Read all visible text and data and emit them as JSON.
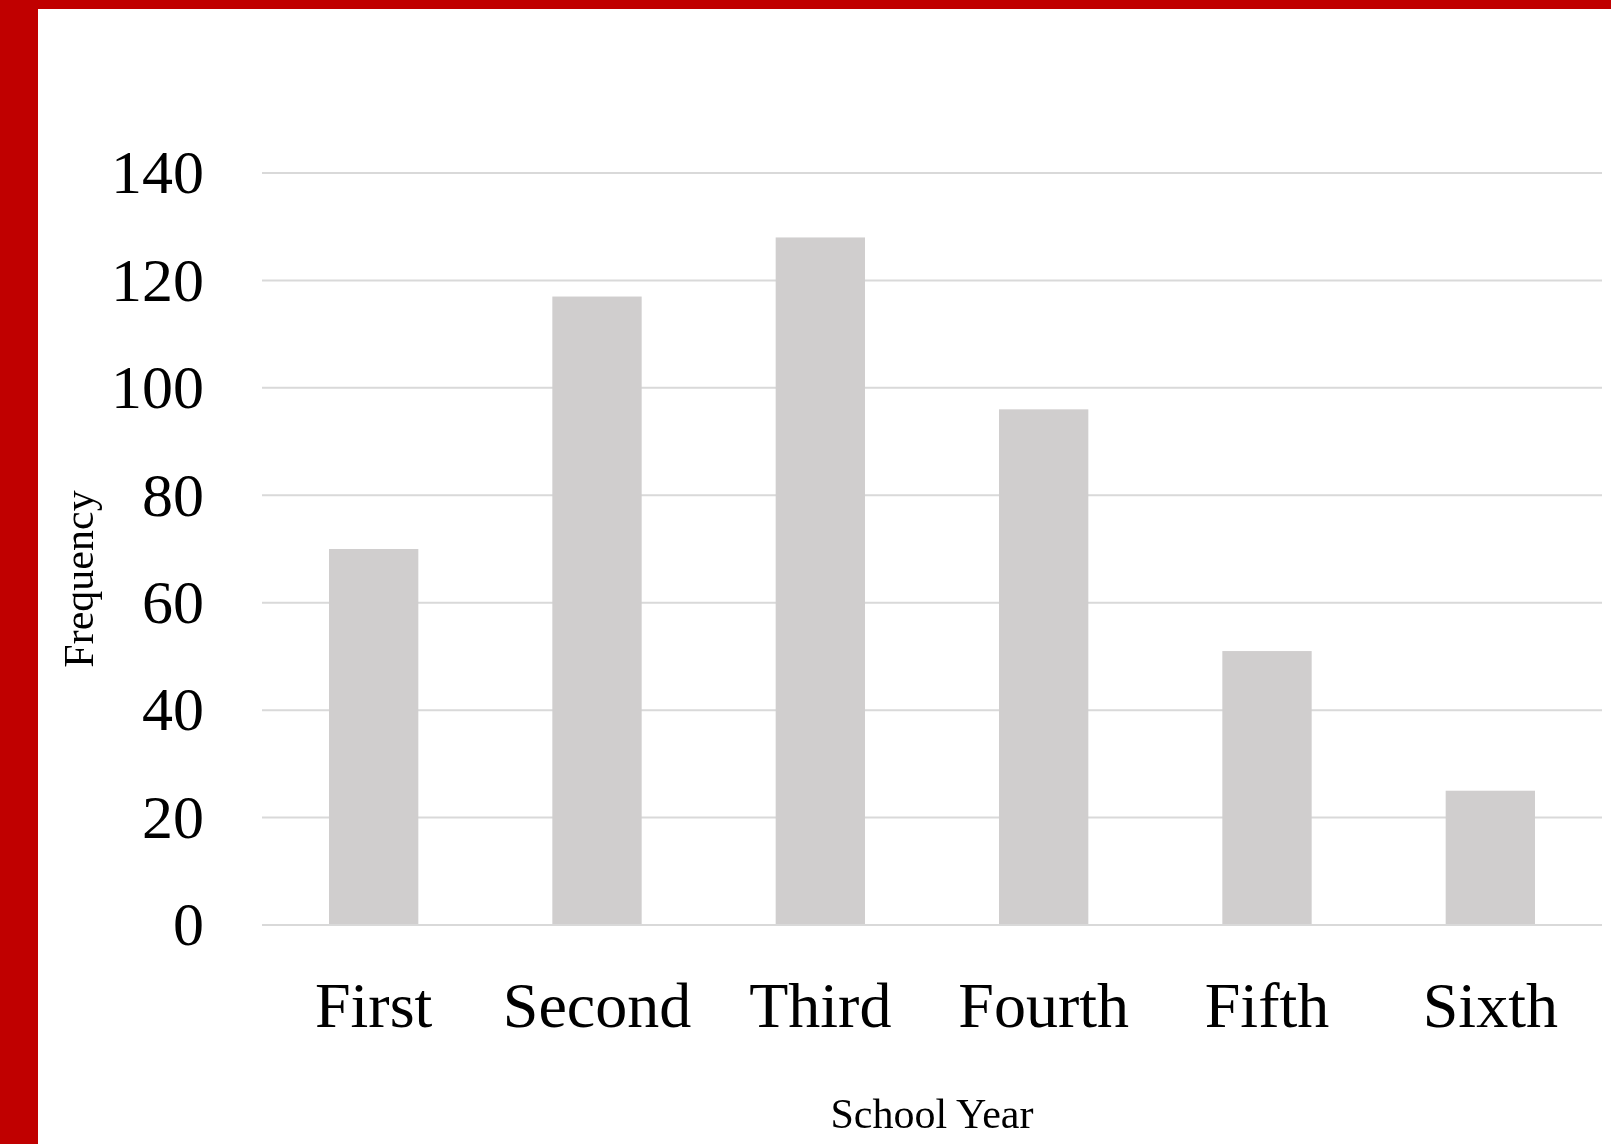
{
  "chart_data": {
    "type": "bar",
    "xlabel": "School Year",
    "ylabel": "Frequency",
    "categories": [
      "First",
      "Second",
      "Third",
      "Fourth",
      "Fifth",
      "Sixth"
    ],
    "values": [
      70,
      117,
      128,
      96,
      51,
      25
    ],
    "color": "#d0cece",
    "ylim": [
      0,
      140
    ],
    "yticks": [
      0,
      20,
      40,
      60,
      80,
      100,
      120,
      140
    ],
    "grid": "y"
  }
}
